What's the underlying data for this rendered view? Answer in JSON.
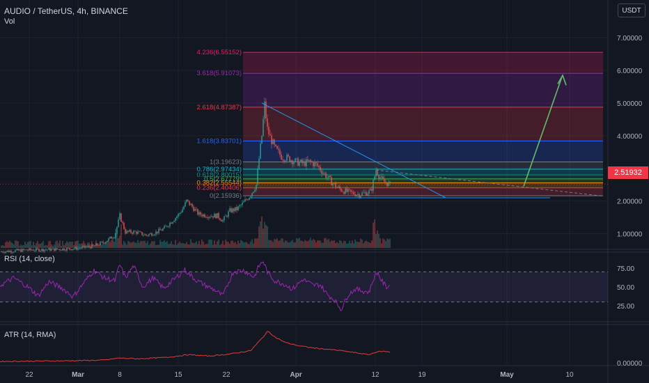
{
  "header": {
    "title": "AUDIO / TetherUS, 4h, BINANCE",
    "volume_label": "Vol",
    "currency": "USDT",
    "last_price": "2.51932"
  },
  "panes": {
    "rsi_title": "RSI (14, close)",
    "atr_title": "ATR (14, RMA)"
  },
  "colors": {
    "background": "#131722",
    "up_candle": "#26a69a",
    "down_candle": "#ef5350",
    "rsi_line": "#9c27b0",
    "atr_line": "#e53935",
    "trendline": "#2196f3",
    "projection_arrow": "#66bb6a",
    "last_price": "#f23645"
  },
  "chart_data": [
    {
      "type": "candlestick",
      "pane": "price",
      "symbol": "AUDIO / TetherUS",
      "timeframe": "4h",
      "exchange": "BINANCE",
      "x_ticks": [
        "22",
        "Mar",
        "8",
        "15",
        "22",
        "Apr",
        "12",
        "19",
        "May",
        "10"
      ],
      "y_ticks": [
        "1.00000",
        "2.00000",
        "3.00000",
        "4.00000",
        "5.00000",
        "6.00000",
        "7.00000"
      ],
      "ylim": [
        0.5,
        7.3
      ],
      "last_price": 2.51932,
      "price_path": [
        [
          0,
          0.45
        ],
        [
          40,
          0.5
        ],
        [
          80,
          0.52
        ],
        [
          110,
          0.55
        ],
        [
          135,
          0.62
        ],
        [
          150,
          0.75
        ],
        [
          165,
          0.95
        ],
        [
          172,
          1.55
        ],
        [
          180,
          1.05
        ],
        [
          195,
          1.05
        ],
        [
          210,
          0.95
        ],
        [
          225,
          1.05
        ],
        [
          235,
          1.15
        ],
        [
          245,
          1.35
        ],
        [
          255,
          1.55
        ],
        [
          262,
          1.75
        ],
        [
          268,
          2.0
        ],
        [
          275,
          1.85
        ],
        [
          285,
          1.6
        ],
        [
          300,
          1.55
        ],
        [
          312,
          1.55
        ],
        [
          320,
          1.4
        ],
        [
          330,
          1.7
        ],
        [
          340,
          1.75
        ],
        [
          350,
          1.95
        ],
        [
          360,
          2.2
        ],
        [
          368,
          2.5
        ],
        [
          372,
          3.3
        ],
        [
          376,
          4.0
        ],
        [
          380,
          4.95
        ],
        [
          384,
          4.2
        ],
        [
          388,
          3.95
        ],
        [
          395,
          3.6
        ],
        [
          405,
          3.35
        ],
        [
          415,
          3.3
        ],
        [
          425,
          3.2
        ],
        [
          435,
          3.15
        ],
        [
          445,
          3.2
        ],
        [
          455,
          3.1
        ],
        [
          465,
          2.85
        ],
        [
          475,
          2.6
        ],
        [
          485,
          2.4
        ],
        [
          495,
          2.3
        ],
        [
          505,
          2.25
        ],
        [
          515,
          2.2
        ],
        [
          525,
          2.25
        ],
        [
          533,
          2.3
        ],
        [
          540,
          2.95
        ],
        [
          545,
          2.75
        ],
        [
          550,
          2.6
        ],
        [
          556,
          2.55
        ],
        [
          560,
          2.5
        ]
      ],
      "fibonacci_levels": [
        {
          "ratio": "0",
          "price": 2.15936,
          "label": "0(2.15936)",
          "color": "#787b86"
        },
        {
          "ratio": "0.236",
          "price": 2.40406,
          "label": "0.236(2.40406)",
          "color": "#f23645"
        },
        {
          "ratio": "0.382",
          "price": 2.55544,
          "label": "0.382(2.55544)",
          "color": "#ff9800"
        },
        {
          "ratio": "0.5",
          "price": 2.6778,
          "label": "0.5(2.67779)",
          "color": "#4caf50"
        },
        {
          "ratio": "0.618",
          "price": 2.80015,
          "label": "0.618(2.80015)",
          "color": "#089981"
        },
        {
          "ratio": "0.786",
          "price": 2.97434,
          "label": "0.786(2.97434)",
          "color": "#00bcd4"
        },
        {
          "ratio": "1",
          "price": 3.19623,
          "label": "1(3.19623)",
          "color": "#787b86"
        },
        {
          "ratio": "1.618",
          "price": 3.83701,
          "label": "1.618(3.83701)",
          "color": "#2962ff"
        },
        {
          "ratio": "2.618",
          "price": 4.87387,
          "label": "2.618(4.87387)",
          "color": "#f23645"
        },
        {
          "ratio": "3.618",
          "price": 5.91073,
          "label": "3.618(5.91073)",
          "color": "#9c27b0"
        },
        {
          "ratio": "4.236",
          "price": 6.55152,
          "label": "4.236(6.55152)",
          "color": "#e91e63"
        }
      ]
    },
    {
      "type": "line",
      "pane": "rsi",
      "title": "RSI (14, close)",
      "y_ticks": [
        "25.00",
        "50.00",
        "75.00"
      ],
      "ylim": [
        15,
        90
      ],
      "bands": [
        30,
        70
      ],
      "path": [
        [
          0,
          52
        ],
        [
          20,
          62
        ],
        [
          40,
          50
        ],
        [
          55,
          38
        ],
        [
          70,
          57
        ],
        [
          90,
          48
        ],
        [
          105,
          37
        ],
        [
          120,
          55
        ],
        [
          135,
          72
        ],
        [
          150,
          62
        ],
        [
          165,
          58
        ],
        [
          172,
          80
        ],
        [
          180,
          62
        ],
        [
          192,
          78
        ],
        [
          205,
          50
        ],
        [
          220,
          62
        ],
        [
          235,
          48
        ],
        [
          250,
          60
        ],
        [
          265,
          73
        ],
        [
          280,
          60
        ],
        [
          295,
          52
        ],
        [
          310,
          45
        ],
        [
          320,
          38
        ],
        [
          335,
          70
        ],
        [
          350,
          72
        ],
        [
          365,
          63
        ],
        [
          372,
          78
        ],
        [
          378,
          84
        ],
        [
          385,
          68
        ],
        [
          395,
          58
        ],
        [
          410,
          53
        ],
        [
          420,
          47
        ],
        [
          435,
          60
        ],
        [
          450,
          52
        ],
        [
          460,
          53
        ],
        [
          470,
          40
        ],
        [
          480,
          33
        ],
        [
          490,
          20
        ],
        [
          500,
          40
        ],
        [
          510,
          47
        ],
        [
          520,
          45
        ],
        [
          530,
          43
        ],
        [
          537,
          62
        ],
        [
          542,
          70
        ],
        [
          548,
          58
        ],
        [
          555,
          50
        ],
        [
          560,
          52
        ]
      ]
    },
    {
      "type": "line",
      "pane": "atr",
      "title": "ATR (14, RMA)",
      "y_ticks": [
        "0.00000"
      ],
      "ylim": [
        -0.05,
        0.6
      ],
      "path": [
        [
          0,
          0.02
        ],
        [
          50,
          0.025
        ],
        [
          100,
          0.03
        ],
        [
          150,
          0.04
        ],
        [
          170,
          0.07
        ],
        [
          200,
          0.06
        ],
        [
          240,
          0.08
        ],
        [
          270,
          0.12
        ],
        [
          300,
          0.1
        ],
        [
          330,
          0.13
        ],
        [
          360,
          0.18
        ],
        [
          375,
          0.35
        ],
        [
          385,
          0.47
        ],
        [
          395,
          0.38
        ],
        [
          410,
          0.3
        ],
        [
          430,
          0.25
        ],
        [
          450,
          0.22
        ],
        [
          470,
          0.2
        ],
        [
          490,
          0.18
        ],
        [
          510,
          0.15
        ],
        [
          530,
          0.12
        ],
        [
          540,
          0.16
        ],
        [
          550,
          0.17
        ],
        [
          560,
          0.16
        ]
      ]
    }
  ]
}
